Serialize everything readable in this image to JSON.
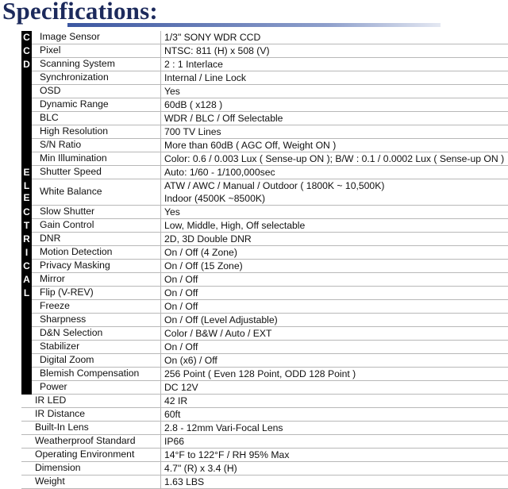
{
  "title": "Specifications:",
  "rows": [
    {
      "band": "C",
      "label": "Image Sensor",
      "value": [
        "1/3\" SONY WDR CCD"
      ]
    },
    {
      "band": "C",
      "label": "Pixel",
      "value": [
        "NTSC: 811 (H) x 508 (V)"
      ]
    },
    {
      "band": "D",
      "label": "Scanning System",
      "value": [
        "2 : 1 Interlace"
      ]
    },
    {
      "band": "",
      "label": "Synchronization",
      "value": [
        "Internal / Line Lock"
      ]
    },
    {
      "band": "",
      "label": "OSD",
      "value": [
        "Yes"
      ]
    },
    {
      "band": "",
      "label": "Dynamic Range",
      "value": [
        "60dB ( x128 )"
      ]
    },
    {
      "band": "",
      "label": "BLC",
      "value": [
        "WDR / BLC / Off Selectable"
      ]
    },
    {
      "band": "",
      "label": "High Resolution",
      "value": [
        "700 TV Lines"
      ]
    },
    {
      "band": "",
      "label": "S/N Ratio",
      "value": [
        "More than 60dB ( AGC Off, Weight ON )"
      ]
    },
    {
      "band": "",
      "label": "Min Illumination",
      "value": [
        "Color: 0.6 / 0.003 Lux ( Sense-up ON ); B/W : 0.1 / 0.0002 Lux ( Sense-up ON )"
      ]
    },
    {
      "band": "E",
      "label": "Shutter Speed",
      "value": [
        "Auto: 1/60 - 1/100,000sec"
      ]
    },
    {
      "band": "L\nE",
      "label": "White Balance",
      "value": [
        "ATW / AWC / Manual / Outdoor ( 1800K ~ 10,500K)",
        "Indoor (4500K ~8500K)"
      ]
    },
    {
      "band": "C",
      "label": "Slow Shutter",
      "value": [
        "Yes"
      ]
    },
    {
      "band": "T",
      "label": "Gain Control",
      "value": [
        "Low, Middle, High, Off selectable"
      ]
    },
    {
      "band": "R",
      "label": "DNR",
      "value": [
        "2D, 3D Double DNR"
      ]
    },
    {
      "band": "I",
      "label": "Motion Detection",
      "value": [
        "On / Off (4 Zone)"
      ]
    },
    {
      "band": "C",
      "label": "Privacy Masking",
      "value": [
        "On / Off (15 Zone)"
      ]
    },
    {
      "band": "A",
      "label": "Mirror",
      "value": [
        "On / Off"
      ]
    },
    {
      "band": "L",
      "label": "Flip (V-REV)",
      "value": [
        "On / Off"
      ]
    },
    {
      "band": "",
      "label": "Freeze",
      "value": [
        "On / Off"
      ]
    },
    {
      "band": "",
      "label": "Sharpness",
      "value": [
        "On / Off (Level Adjustable)"
      ]
    },
    {
      "band": "",
      "label": "D&N Selection",
      "value": [
        "Color / B&W / Auto / EXT"
      ]
    },
    {
      "band": "",
      "label": "Stabilizer",
      "value": [
        "On / Off"
      ]
    },
    {
      "band": "",
      "label": "Digital Zoom",
      "value": [
        "On (x6) / Off"
      ]
    },
    {
      "band": "",
      "label": "Blemish Compensation",
      "value": [
        "256 Point ( Even 128 Point, ODD 128 Point )"
      ]
    },
    {
      "band": "",
      "label": "Power",
      "value": [
        "DC 12V"
      ]
    },
    {
      "band": null,
      "label": "IR LED",
      "value": [
        "42 IR"
      ]
    },
    {
      "band": null,
      "label": "IR Distance",
      "value": [
        "60ft"
      ]
    },
    {
      "band": null,
      "label": "Built-In Lens",
      "value": [
        "2.8 - 12mm Vari-Focal Lens"
      ]
    },
    {
      "band": null,
      "label": "Weatherproof Standard",
      "value": [
        "IP66"
      ]
    },
    {
      "band": null,
      "label": "Operating Environment",
      "value": [
        "14°F to 122°F / RH 95% Max"
      ]
    },
    {
      "band": null,
      "label": "Dimension",
      "value": [
        "4.7\" (R) x 3.4 (H)"
      ]
    },
    {
      "band": null,
      "label": "Weight",
      "value": [
        "1.63 LBS"
      ]
    }
  ]
}
